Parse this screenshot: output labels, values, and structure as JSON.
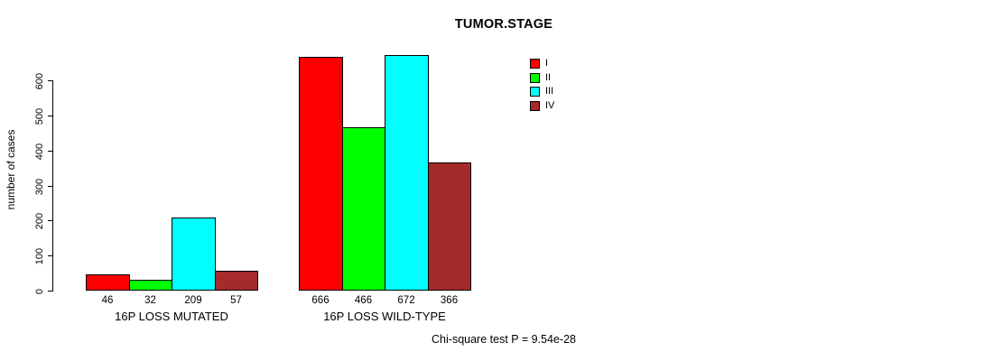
{
  "chart_data": {
    "type": "bar",
    "title": "TUMOR.STAGE",
    "ylabel": "number of cases",
    "xlabel": "",
    "categories": [
      "16P LOSS MUTATED",
      "16P LOSS WILD-TYPE"
    ],
    "series": [
      {
        "name": "I",
        "color": "#ff0000",
        "values": [
          46,
          666
        ]
      },
      {
        "name": "II",
        "color": "#00ff00",
        "values": [
          32,
          466
        ]
      },
      {
        "name": "III",
        "color": "#00ffff",
        "values": [
          209,
          672
        ]
      },
      {
        "name": "IV",
        "color": "#a52a2a",
        "values": [
          57,
          366
        ]
      }
    ],
    "bar_value_labels": [
      [
        "46",
        "32",
        "209",
        "57"
      ],
      [
        "666",
        "466",
        "672",
        "366"
      ]
    ],
    "yticks": [
      0,
      100,
      200,
      300,
      400,
      500,
      600
    ],
    "ylim": [
      0,
      680
    ],
    "grid": false,
    "legend": {
      "entries": [
        "I",
        "II",
        "III",
        "IV"
      ],
      "position": "right-inside"
    },
    "annotation": "Chi-square test P = 9.54e-28"
  }
}
